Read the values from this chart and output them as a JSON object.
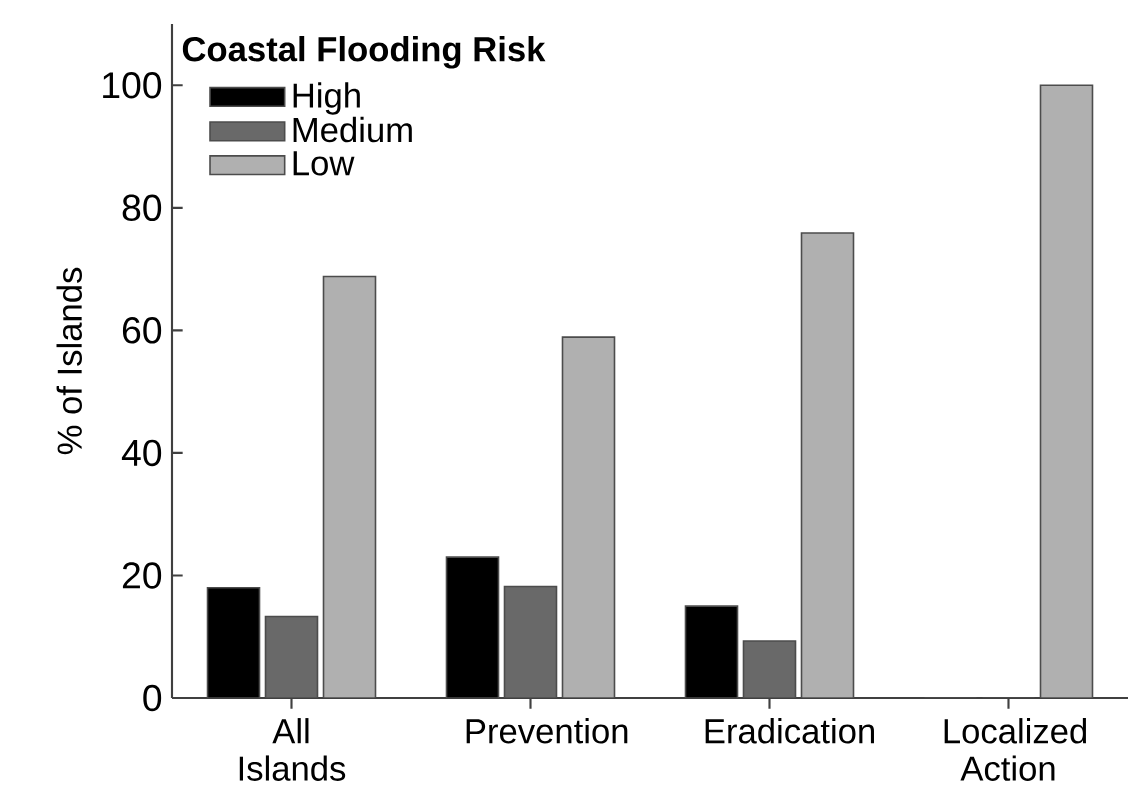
{
  "chart_data": {
    "type": "bar",
    "ylabel": "% of Islands",
    "legend_title": "Coastal Flooding Risk",
    "categories": [
      "All Islands",
      "Prevention",
      "Eradication",
      "Localized Action"
    ],
    "series": [
      {
        "name": "High",
        "color": "#000000",
        "values": [
          18,
          23,
          15,
          0
        ]
      },
      {
        "name": "Medium",
        "color": "#696969",
        "values": [
          13.3,
          18.2,
          9.3,
          0
        ]
      },
      {
        "name": "Low",
        "color": "#b0b0b0",
        "values": [
          68.8,
          58.9,
          75.9,
          100
        ]
      }
    ],
    "ylim": [
      0,
      110
    ],
    "yticks": [
      0,
      20,
      40,
      60,
      80,
      100
    ],
    "grid": false,
    "legend": "top left"
  }
}
